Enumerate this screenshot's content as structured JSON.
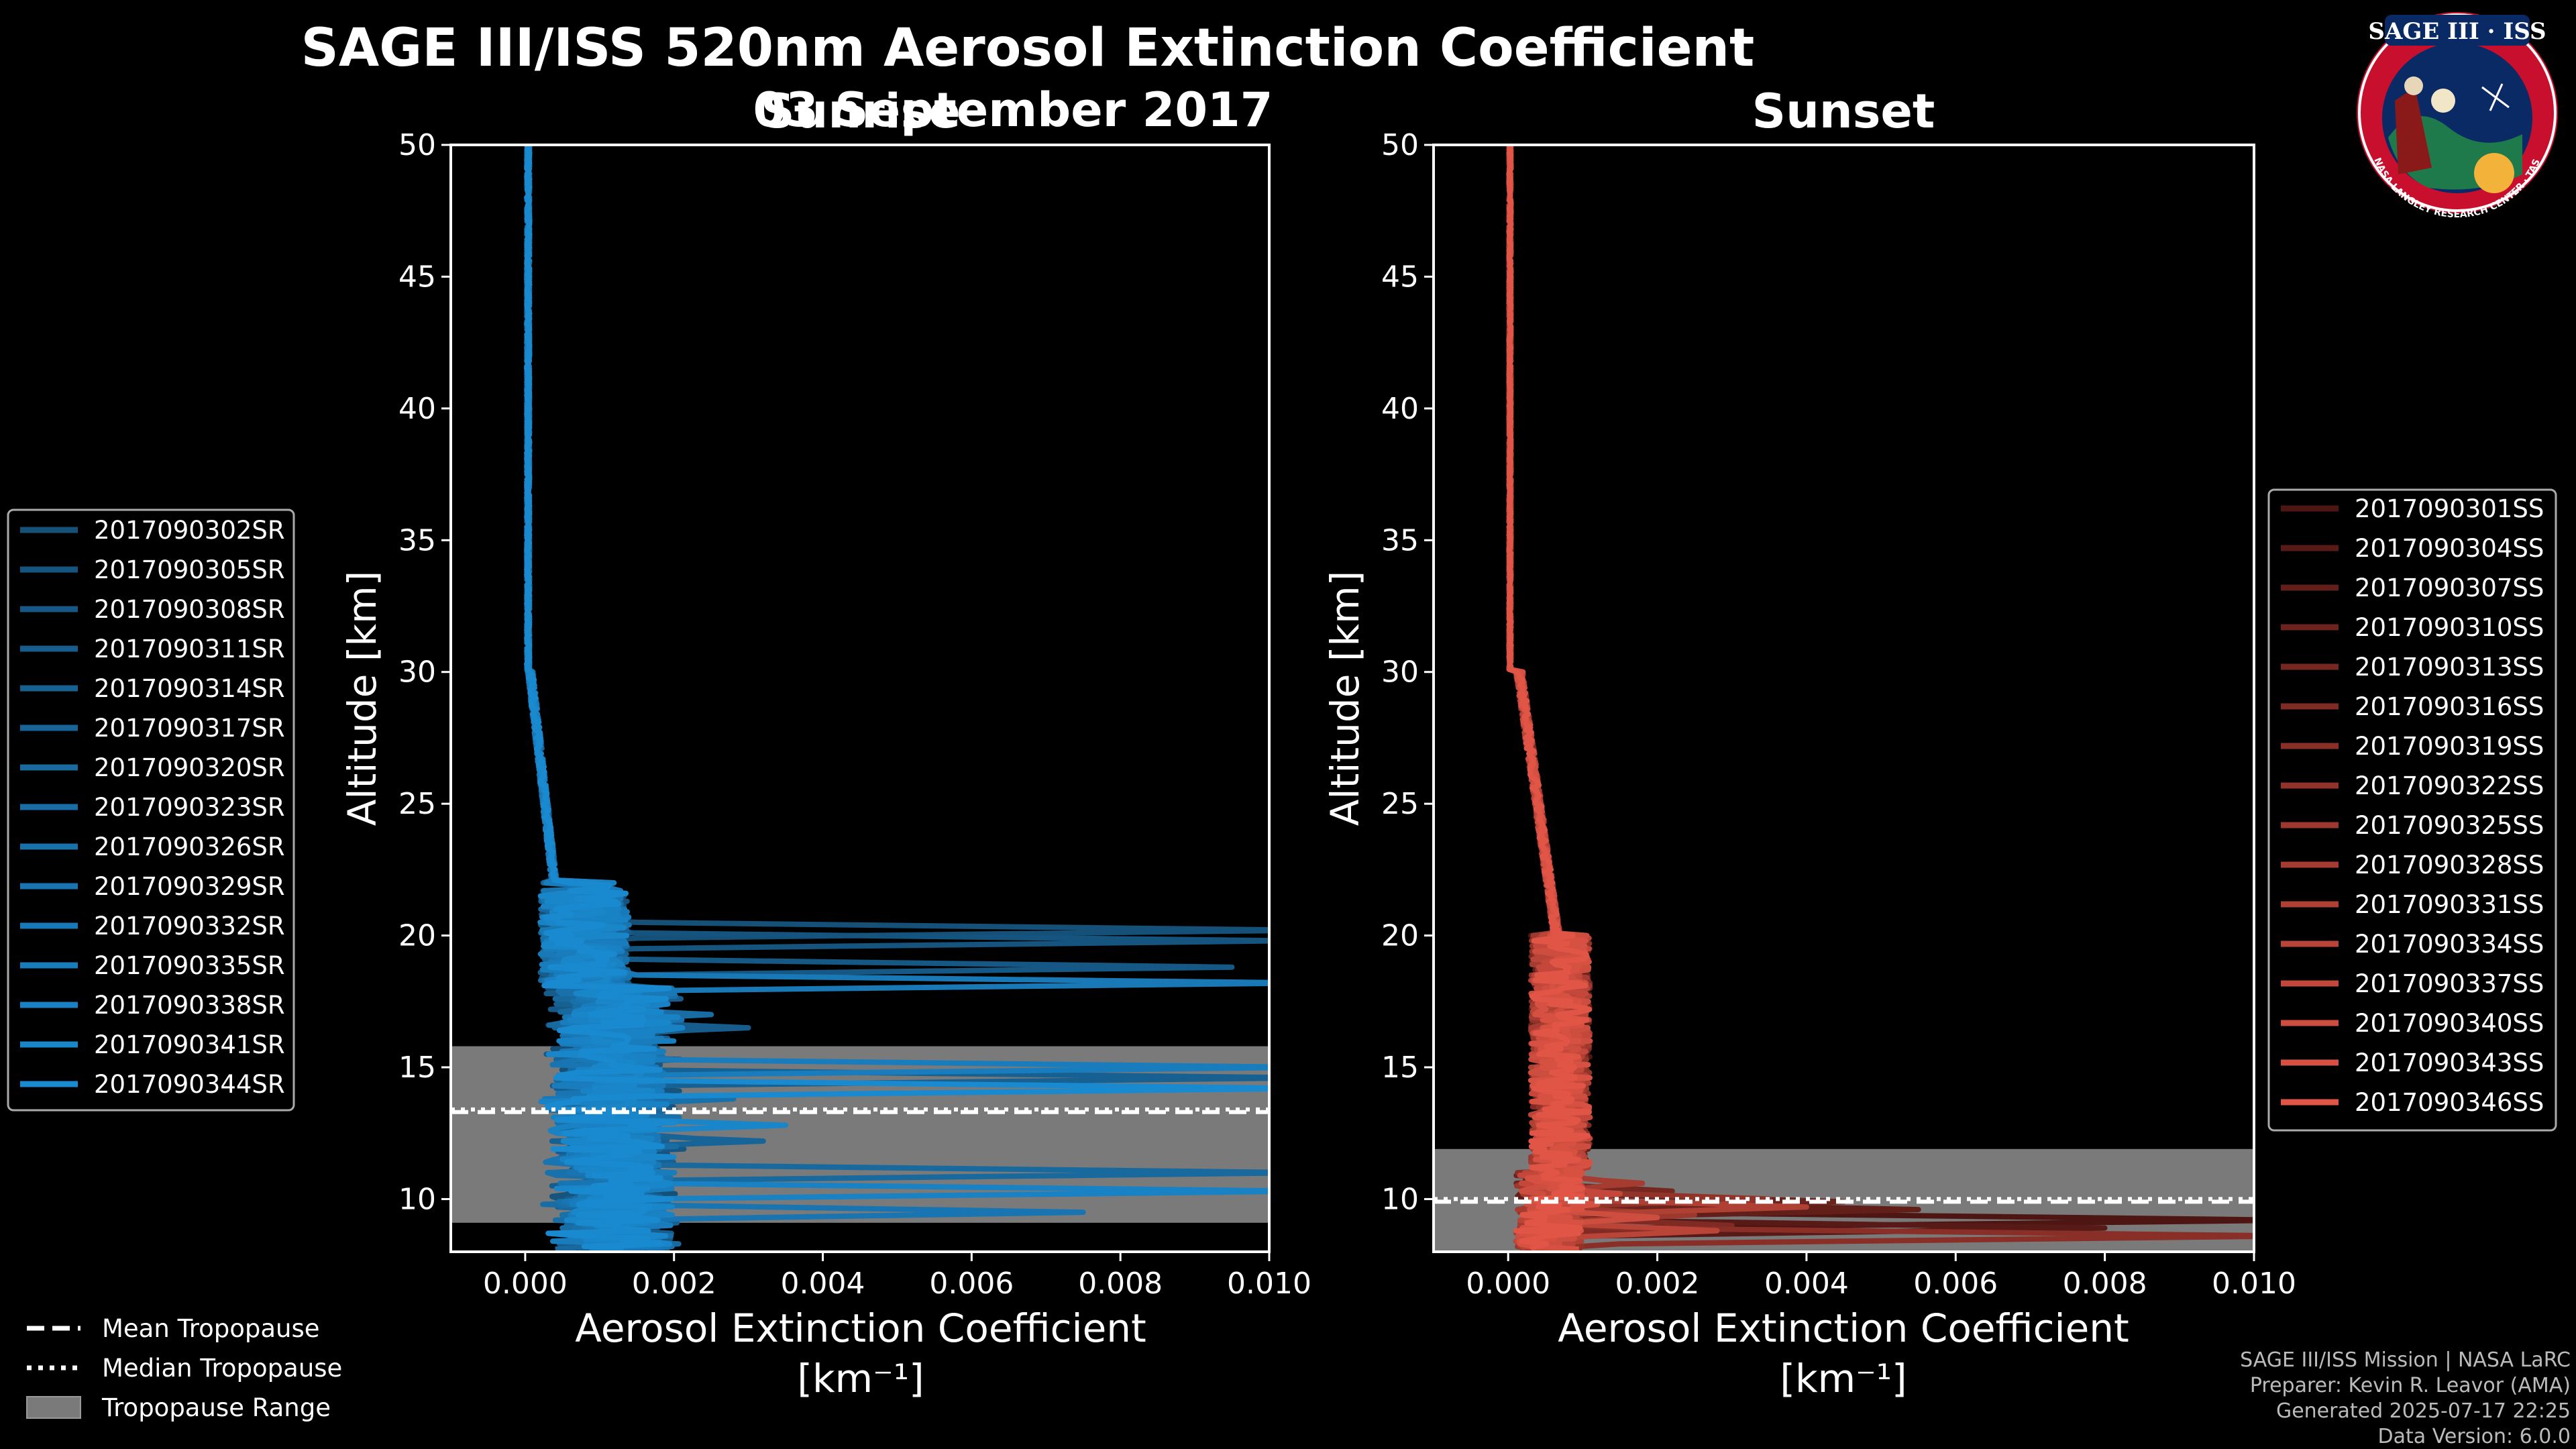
{
  "figure": {
    "title_line1": "SAGE III/ISS 520nm Aerosol Extinction Coefficient",
    "title_line2": "03 September 2017"
  },
  "colors": {
    "sunrise": "#1a8ad0",
    "sunset": "#e05545",
    "tropopause_range": "#7a7a7a",
    "axes": "#ffffff"
  },
  "chart_data": [
    {
      "type": "line",
      "panel": "sunrise",
      "title": "Sunrise",
      "xlabel": "Aerosol Extinction Coefficient",
      "xlabel_units": "[km⁻¹]",
      "ylabel": "Altitude [km]",
      "xlim": [
        -0.001,
        0.01
      ],
      "ylim": [
        8,
        50
      ],
      "xticks": [
        0.0,
        0.002,
        0.004,
        0.006,
        0.008,
        0.01
      ],
      "xtick_labels": [
        "0.000",
        "0.002",
        "0.004",
        "0.006",
        "0.008",
        "0.010"
      ],
      "yticks": [
        10,
        15,
        20,
        25,
        30,
        35,
        40,
        45,
        50
      ],
      "ytick_labels": [
        "10",
        "15",
        "20",
        "25",
        "30",
        "35",
        "40",
        "45",
        "50"
      ],
      "tropopause": {
        "mean": 13.3,
        "median": 13.4,
        "range": [
          9.1,
          15.8
        ]
      },
      "series": [
        {
          "name": "2017090302SR",
          "peak_alt": 20.2,
          "peak_val": 0.0105
        },
        {
          "name": "2017090305SR",
          "peak_alt": 19.8,
          "peak_val": 0.0102
        },
        {
          "name": "2017090308SR",
          "peak_alt": 18.8,
          "peak_val": 0.0095
        },
        {
          "name": "2017090311SR",
          "peak_alt": 16.5,
          "peak_val": 0.003
        },
        {
          "name": "2017090314SR",
          "peak_alt": 14.6,
          "peak_val": 0.0105
        },
        {
          "name": "2017090317SR",
          "peak_alt": 12.2,
          "peak_val": 0.0032
        },
        {
          "name": "2017090320SR",
          "peak_alt": 11.0,
          "peak_val": 0.0105
        },
        {
          "name": "2017090323SR",
          "peak_alt": 17.0,
          "peak_val": 0.0025
        },
        {
          "name": "2017090326SR",
          "peak_alt": 13.8,
          "peak_val": 0.0028
        },
        {
          "name": "2017090329SR",
          "peak_alt": 9.5,
          "peak_val": 0.0075
        },
        {
          "name": "2017090332SR",
          "peak_alt": 18.2,
          "peak_val": 0.0105
        },
        {
          "name": "2017090335SR",
          "peak_alt": 15.0,
          "peak_val": 0.0105
        },
        {
          "name": "2017090338SR",
          "peak_alt": 10.3,
          "peak_val": 0.0105
        },
        {
          "name": "2017090341SR",
          "peak_alt": 12.8,
          "peak_val": 0.0035
        },
        {
          "name": "2017090344SR",
          "peak_alt": 14.2,
          "peak_val": 0.0105
        }
      ]
    },
    {
      "type": "line",
      "panel": "sunset",
      "title": "Sunset",
      "xlabel": "Aerosol Extinction Coefficient",
      "xlabel_units": "[km⁻¹]",
      "ylabel": "Altitude [km]",
      "xlim": [
        -0.001,
        0.01
      ],
      "ylim": [
        8,
        50
      ],
      "xticks": [
        0.0,
        0.002,
        0.004,
        0.006,
        0.008,
        0.01
      ],
      "xtick_labels": [
        "0.000",
        "0.002",
        "0.004",
        "0.006",
        "0.008",
        "0.010"
      ],
      "yticks": [
        10,
        15,
        20,
        25,
        30,
        35,
        40,
        45,
        50
      ],
      "ytick_labels": [
        "10",
        "15",
        "20",
        "25",
        "30",
        "35",
        "40",
        "45",
        "50"
      ],
      "tropopause": {
        "mean": 9.9,
        "median": 10.0,
        "range": [
          8.0,
          11.9
        ]
      },
      "series": [
        {
          "name": "2017090301SS",
          "peak_alt": 9.2,
          "peak_val": 0.0105
        },
        {
          "name": "2017090304SS",
          "peak_alt": 8.9,
          "peak_val": 0.008
        },
        {
          "name": "2017090307SS",
          "peak_alt": 9.6,
          "peak_val": 0.0055
        },
        {
          "name": "2017090310SS",
          "peak_alt": 9.9,
          "peak_val": 0.0045
        },
        {
          "name": "2017090313SS",
          "peak_alt": 10.3,
          "peak_val": 0.0022
        },
        {
          "name": "2017090316SS",
          "peak_alt": 9.0,
          "peak_val": 0.003
        },
        {
          "name": "2017090319SS",
          "peak_alt": 8.6,
          "peak_val": 0.0105
        },
        {
          "name": "2017090322SS",
          "peak_alt": 10.0,
          "peak_val": 0.0035
        },
        {
          "name": "2017090325SS",
          "peak_alt": 9.4,
          "peak_val": 0.0025
        },
        {
          "name": "2017090328SS",
          "peak_alt": 10.6,
          "peak_val": 0.0018
        },
        {
          "name": "2017090331SS",
          "peak_alt": 9.7,
          "peak_val": 0.004
        },
        {
          "name": "2017090334SS",
          "peak_alt": 8.8,
          "peak_val": 0.0028
        },
        {
          "name": "2017090337SS",
          "peak_alt": 10.2,
          "peak_val": 0.0015
        },
        {
          "name": "2017090340SS",
          "peak_alt": 9.3,
          "peak_val": 0.002
        },
        {
          "name": "2017090343SS",
          "peak_alt": 9.8,
          "peak_val": 0.0012
        },
        {
          "name": "2017090346SS",
          "peak_alt": 10.4,
          "peak_val": 0.001
        }
      ]
    }
  ],
  "legend_tropopause": {
    "mean": "Mean Tropopause",
    "median": "Median Tropopause",
    "range": "Tropopause Range"
  },
  "logo": {
    "title": "SAGE III · ISS",
    "ring_text": "BALL · NASA LANGLEY RESEARCH CENTER · TAS-I · ESA"
  },
  "footer": {
    "line1": "SAGE III/ISS Mission | NASA LaRC",
    "line2": "Preparer: Kevin R. Leavor (AMA)",
    "line3": "Generated 2025-07-17 22:25",
    "line4": "Data Version: 6.0.0"
  }
}
